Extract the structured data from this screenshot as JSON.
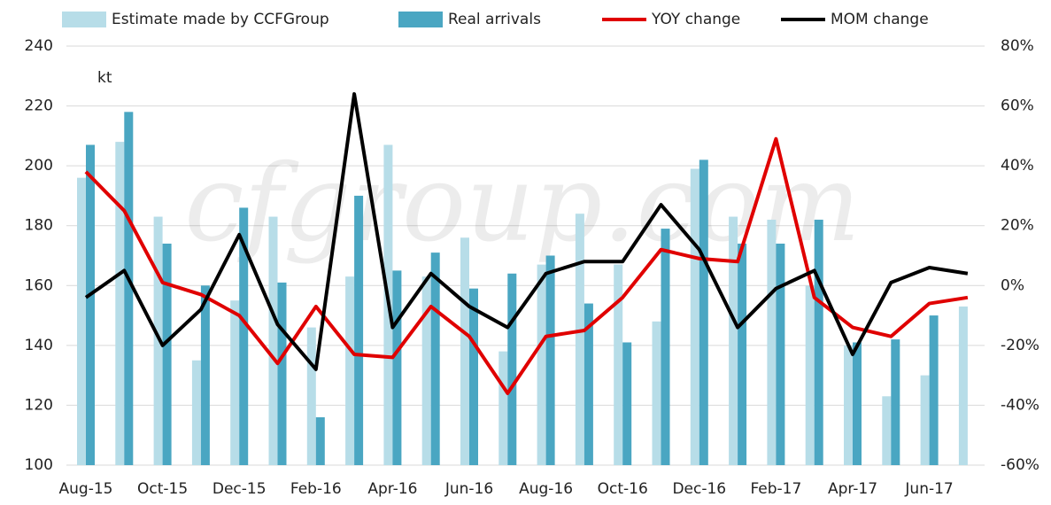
{
  "chart_data": {
    "type": "bar",
    "annotation": "kt",
    "watermark": "cfgroup.com",
    "categories": [
      "Aug-15",
      null,
      "Oct-15",
      null,
      "Dec-15",
      null,
      "Feb-16",
      null,
      "Apr-16",
      null,
      "Jun-16",
      null,
      "Aug-16",
      null,
      "Oct-16",
      null,
      "Dec-16",
      null,
      "Feb-17",
      null,
      "Apr-17",
      null,
      "Jun-17",
      null
    ],
    "series": [
      {
        "name": "Estimate made by CCFGroup",
        "type": "bar",
        "color": "#b7dde8",
        "values": [
          196,
          208,
          183,
          135,
          155,
          183,
          146,
          163,
          207,
          163,
          176,
          138,
          167,
          184,
          167,
          148,
          199,
          183,
          182,
          160,
          140,
          123,
          130,
          153
        ]
      },
      {
        "name": "Real arrivals",
        "type": "bar",
        "color": "#4aa6c2",
        "values": [
          207,
          218,
          174,
          160,
          186,
          161,
          116,
          190,
          165,
          171,
          159,
          164,
          170,
          154,
          141,
          179,
          202,
          174,
          174,
          182,
          141,
          142,
          150,
          null
        ]
      },
      {
        "name": "YOY change",
        "type": "line",
        "axis": "y2",
        "color": "#e00000",
        "values": [
          38,
          25,
          1,
          -3,
          -10,
          -26,
          -7,
          -23,
          -24,
          -7,
          -17,
          -36,
          -17,
          -15,
          -4,
          12,
          9,
          8,
          49,
          -4,
          -14,
          -17,
          -6,
          -4
        ]
      },
      {
        "name": "MOM change",
        "type": "line",
        "axis": "y2",
        "color": "#000000",
        "values": [
          -4,
          5,
          -20,
          -8,
          17,
          -13,
          -28,
          64,
          -14,
          4,
          -7,
          -14,
          4,
          8,
          8,
          27,
          12,
          -14,
          -1,
          5,
          -23,
          1,
          6,
          4
        ]
      }
    ],
    "ylim": [
      100,
      240
    ],
    "yticks": [
      100,
      120,
      140,
      160,
      180,
      200,
      220,
      240
    ],
    "y2lim": [
      -60,
      80
    ],
    "y2ticks": [
      {
        "value": -60,
        "label": "-60%"
      },
      {
        "value": -40,
        "label": "-40%"
      },
      {
        "value": -20,
        "label": "-20%"
      },
      {
        "value": 0,
        "label": "0%"
      },
      {
        "value": 20,
        "label": "20%"
      },
      {
        "value": 40,
        "label": "40%"
      },
      {
        "value": 60,
        "label": "60%"
      },
      {
        "value": 80,
        "label": "80%"
      }
    ],
    "grid": true
  }
}
